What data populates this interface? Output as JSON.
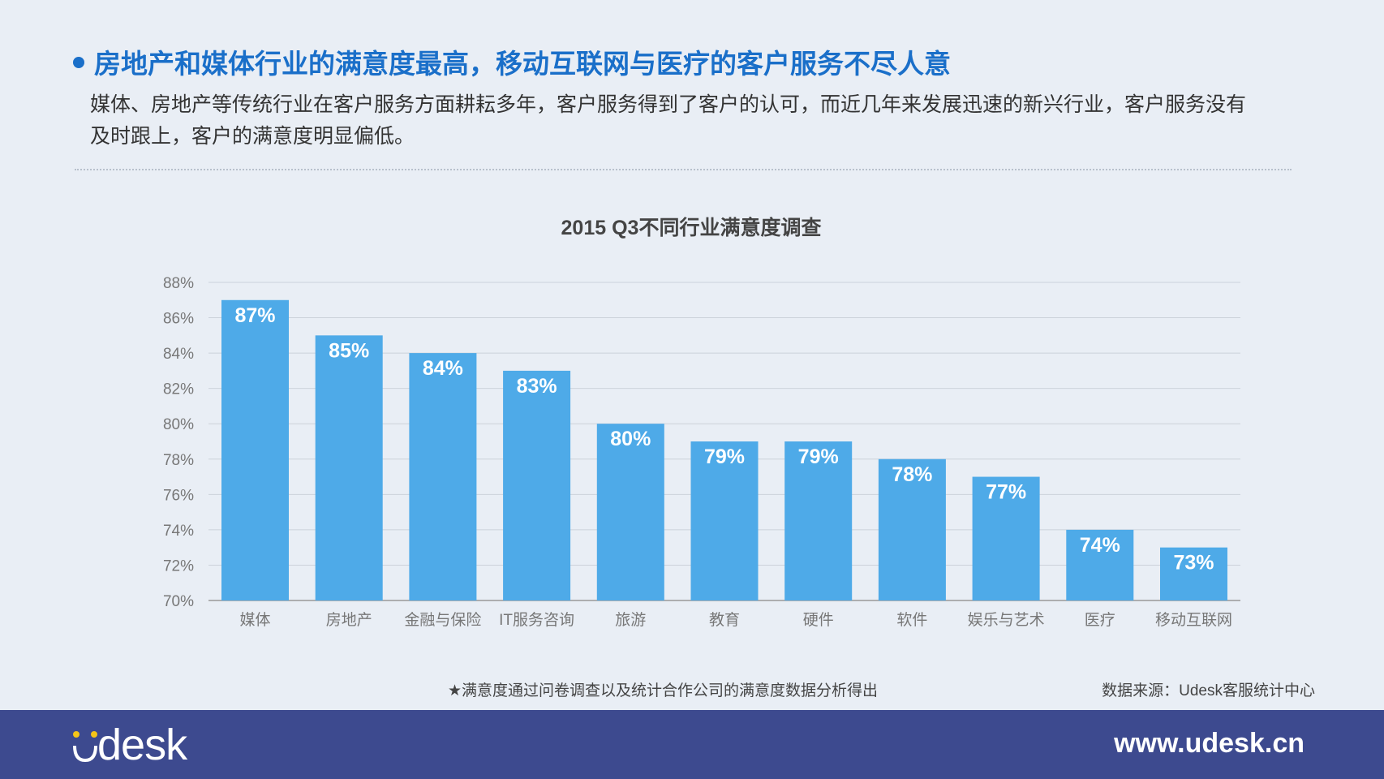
{
  "headline": "房地产和媒体行业的满意度最高，移动互联网与医疗的客户服务不尽人意",
  "paragraph": "媒体、房地产等传统行业在客户服务方面耕耘多年，客户服务得到了客户的认可，而近几年来发展迅速的新兴行业，客户服务没有及时跟上，客户的满意度明显偏低。",
  "chart_data": {
    "type": "bar",
    "title": "2015 Q3不同行业满意度调查",
    "categories": [
      "媒体",
      "房地产",
      "金融与保险",
      "IT服务咨询",
      "旅游",
      "教育",
      "硬件",
      "软件",
      "娱乐与艺术",
      "医疗",
      "移动互联网"
    ],
    "values": [
      87,
      85,
      84,
      83,
      80,
      79,
      79,
      78,
      77,
      74,
      73
    ],
    "data_labels": [
      "87%",
      "85%",
      "84%",
      "83%",
      "80%",
      "79%",
      "79%",
      "78%",
      "77%",
      "74%",
      "73%"
    ],
    "yticks": [
      "70%",
      "72%",
      "74%",
      "76%",
      "78%",
      "80%",
      "82%",
      "84%",
      "86%",
      "88%"
    ],
    "ylim": [
      70,
      88
    ],
    "grid": true,
    "bar_color": "#4eaae8"
  },
  "footnote": "★满意度通过问卷调查以及统计合作公司的满意度数据分析得出",
  "source": "数据来源：Udesk客服统计中心",
  "footer": {
    "logo_text": "desk",
    "logo_full": "Udesk",
    "url": "www.udesk.cn"
  }
}
